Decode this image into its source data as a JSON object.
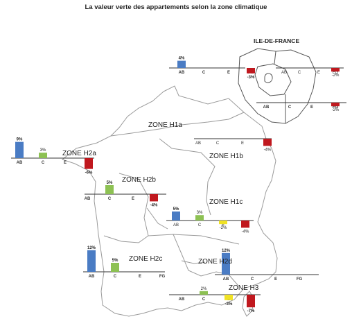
{
  "title": "La valeur verte des appartements selon la zone climatique",
  "colors": {
    "AB": "#4a7cc4",
    "C": "#8dc153",
    "E": "#f0e224",
    "FG": "#c0181e",
    "map_stroke": "#9a9a9a",
    "axis": "#333333"
  },
  "idf": {
    "title": "ILE-DE-FRANCE"
  },
  "charts": [
    {
      "id": "idf-top",
      "zone": "",
      "bars": [
        {
          "cat": "AB",
          "value": 4,
          "label": "4%"
        },
        {
          "cat": "C",
          "value": null,
          "label": ""
        },
        {
          "cat": "E",
          "value": null,
          "label": ""
        },
        {
          "cat": "FG",
          "value": -3,
          "label": "-3%"
        }
      ]
    },
    {
      "id": "idf-inset-top",
      "zone": "",
      "bars": [
        {
          "cat": "AB",
          "value": null,
          "label": ""
        },
        {
          "cat": "C",
          "value": null,
          "label": ""
        },
        {
          "cat": "E",
          "value": null,
          "label": ""
        },
        {
          "cat": "FG",
          "value": -2,
          "label": "-2%"
        }
      ]
    },
    {
      "id": "idf-inset-bottom",
      "zone": "",
      "bars": [
        {
          "cat": "AB",
          "value": null,
          "label": ""
        },
        {
          "cat": "C",
          "value": null,
          "label": ""
        },
        {
          "cat": "E",
          "value": null,
          "label": ""
        },
        {
          "cat": "FG",
          "value": -2,
          "label": "-2%"
        }
      ]
    },
    {
      "id": "h1b",
      "zone": "ZONE H1b",
      "bars": [
        {
          "cat": "AB",
          "value": null,
          "label": ""
        },
        {
          "cat": "C",
          "value": null,
          "label": ""
        },
        {
          "cat": "E",
          "value": null,
          "label": ""
        },
        {
          "cat": "FG",
          "value": -4,
          "label": "-4%"
        }
      ]
    },
    {
      "id": "h2a",
      "zone": "ZONE H2a",
      "bars": [
        {
          "cat": "AB",
          "value": 9,
          "label": "9%"
        },
        {
          "cat": "C",
          "value": 3,
          "label": "3%"
        },
        {
          "cat": "E",
          "value": null,
          "label": ""
        },
        {
          "cat": "FG",
          "value": -6,
          "label": "-6%"
        }
      ]
    },
    {
      "id": "h2b",
      "zone": "ZONE H2b",
      "bars": [
        {
          "cat": "AB",
          "value": null,
          "label": ""
        },
        {
          "cat": "C",
          "value": 5,
          "label": "5%"
        },
        {
          "cat": "E",
          "value": null,
          "label": ""
        },
        {
          "cat": "FG",
          "value": -4,
          "label": "-4%"
        }
      ]
    },
    {
      "id": "h1c",
      "zone": "ZONE H1c",
      "bars": [
        {
          "cat": "AB",
          "value": 5,
          "label": "5%"
        },
        {
          "cat": "C",
          "value": 3,
          "label": "3%"
        },
        {
          "cat": "E",
          "value": -2,
          "label": "-2%"
        },
        {
          "cat": "FG",
          "value": -4,
          "label": "-4%"
        }
      ]
    },
    {
      "id": "h2c",
      "zone": "ZONE H2c",
      "bars": [
        {
          "cat": "AB",
          "value": 12,
          "label": "12%"
        },
        {
          "cat": "C",
          "value": 5,
          "label": "5%"
        },
        {
          "cat": "E",
          "value": null,
          "label": ""
        },
        {
          "cat": "FG",
          "value": null,
          "label": ""
        }
      ]
    },
    {
      "id": "h2d",
      "zone": "ZONE H2d",
      "bars": [
        {
          "cat": "AB",
          "value": 12,
          "label": "12%"
        },
        {
          "cat": "C",
          "value": null,
          "label": ""
        },
        {
          "cat": "E",
          "value": null,
          "label": ""
        },
        {
          "cat": "FG",
          "value": null,
          "label": ""
        }
      ]
    },
    {
      "id": "h3",
      "zone": "ZONE H3",
      "bars": [
        {
          "cat": "AB",
          "value": null,
          "label": ""
        },
        {
          "cat": "C",
          "value": 2,
          "label": "2%"
        },
        {
          "cat": "E",
          "value": -3,
          "label": "-3%"
        },
        {
          "cat": "FG",
          "value": -7,
          "label": "-7%"
        }
      ]
    }
  ],
  "zones_without_chart": [
    {
      "zone": "ZONE H1a"
    }
  ]
}
